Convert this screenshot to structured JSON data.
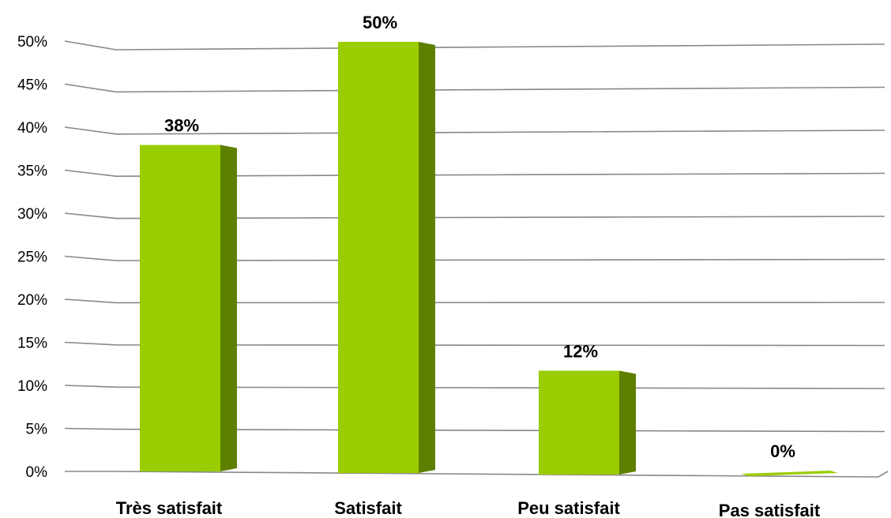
{
  "chart_data": {
    "type": "bar",
    "categories": [
      "Très satisfait",
      "Satisfait",
      "Peu satisfait",
      "Pas satisfait"
    ],
    "values": [
      38,
      50,
      12,
      0
    ],
    "data_labels": [
      "38%",
      "50%",
      "12%",
      "0%"
    ],
    "ylim": [
      0,
      50
    ],
    "yticks": [
      "0%",
      "5%",
      "10%",
      "15%",
      "20%",
      "25%",
      "30%",
      "35%",
      "40%",
      "45%",
      "50%"
    ],
    "grid": true,
    "style": "3d-column",
    "colors": {
      "bar_front": "#9ACD00",
      "bar_side": "#5E8000",
      "bar_top": "#B5E61D",
      "grid": "#888888"
    }
  }
}
